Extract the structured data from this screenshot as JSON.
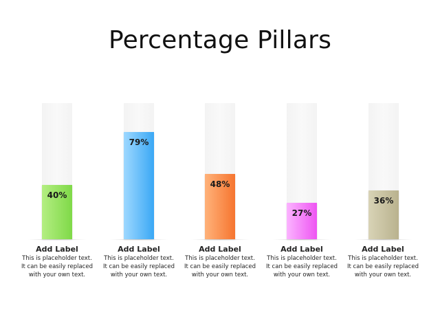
{
  "title": "Percentage Pillars",
  "chart_data": {
    "type": "bar",
    "title": "Percentage Pillars",
    "categories": [
      "Add Label",
      "Add Label",
      "Add Label",
      "Add Label",
      "Add Label"
    ],
    "values": [
      40,
      79,
      48,
      27,
      36
    ],
    "value_labels": [
      "40%",
      "79%",
      "48%",
      "27%",
      "36%"
    ],
    "ylim": [
      0,
      100
    ],
    "grid": false,
    "colors": [
      [
        "#b4ee82",
        "#7fd948"
      ],
      [
        "#9ed8ff",
        "#3aa8f5"
      ],
      [
        "#ffb27a",
        "#f6752f"
      ],
      [
        "#fbb4ff",
        "#ee55f2"
      ],
      [
        "#d8d3b6",
        "#b9b28e"
      ]
    ]
  },
  "items": [
    {
      "label": "Add Label",
      "text": "This is placeholder text.\nIt can be easily replaced\nwith your own text."
    },
    {
      "label": "Add Label",
      "text": "This is placeholder text.\nIt can be easily replaced\nwith your own text."
    },
    {
      "label": "Add Label",
      "text": "This is placeholder text.\nIt can be easily replaced\nwith your own text."
    },
    {
      "label": "Add Label",
      "text": "This is placeholder text.\nIt can be easily replaced\nwith your own text."
    },
    {
      "label": "Add Label",
      "text": "This is placeholder text.\nIt can be easily replaced\nwith your own text."
    }
  ]
}
